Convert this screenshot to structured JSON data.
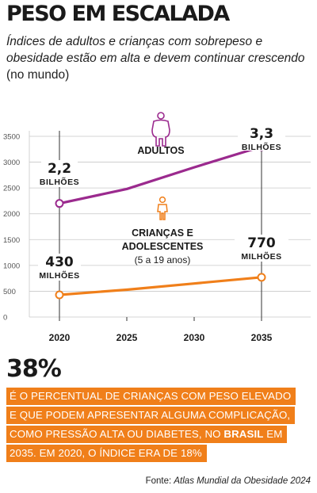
{
  "title": "PESO EM ESCALADA",
  "subtitle": {
    "italic": "Índices de adultos e crianças com sobrepeso e obesidade estão em alta e devem continuar crescendo",
    "regular": "(no mundo)"
  },
  "chart_data": {
    "type": "line",
    "x": [
      2020,
      2025,
      2030,
      2035
    ],
    "xticks": [
      "2020",
      "2025",
      "2030",
      "2035"
    ],
    "ylim": [
      0,
      3500
    ],
    "yticks": [
      "0",
      "500",
      "1000",
      "1500",
      "2000",
      "2500",
      "3000",
      "3500"
    ],
    "grid": true,
    "series": [
      {
        "name": "ADULTOS",
        "color": "#9b2a8e",
        "icon": "adult-person-icon",
        "values": [
          2200,
          2480,
          2900,
          3300
        ],
        "start_label": [
          "2,2",
          "BILHÕES"
        ],
        "end_label": [
          "3,3",
          "BILHÕES"
        ]
      },
      {
        "name": "CRIANÇAS E ADOLESCENTES",
        "name_lines": [
          "CRIANÇAS E",
          "ADOLESCENTES"
        ],
        "sub": "(5 a 19 anos)",
        "color": "#f07f1a",
        "icon": "child-person-icon",
        "values": [
          430,
          530,
          650,
          770
        ],
        "start_label": [
          "430",
          "MILHÕES"
        ],
        "end_label": [
          "770",
          "MILHÕES"
        ]
      }
    ]
  },
  "highlight": {
    "percent": "38%",
    "lines": [
      "É O PERCENTUAL DE CRIANÇAS COM PESO ELEVADO",
      "E QUE PODEM APRESENTAR ALGUMA COMPLICAÇÃO,",
      "COMO PRESSÃO ALTA OU DIABETES, NO ",
      "BRASIL",
      " EM",
      "2035. EM 2020, O ÍNDICE ERA DE 18%"
    ]
  },
  "source": {
    "prefix": "Fonte: ",
    "name": "Atlas Mundial da Obesidade 2024"
  }
}
